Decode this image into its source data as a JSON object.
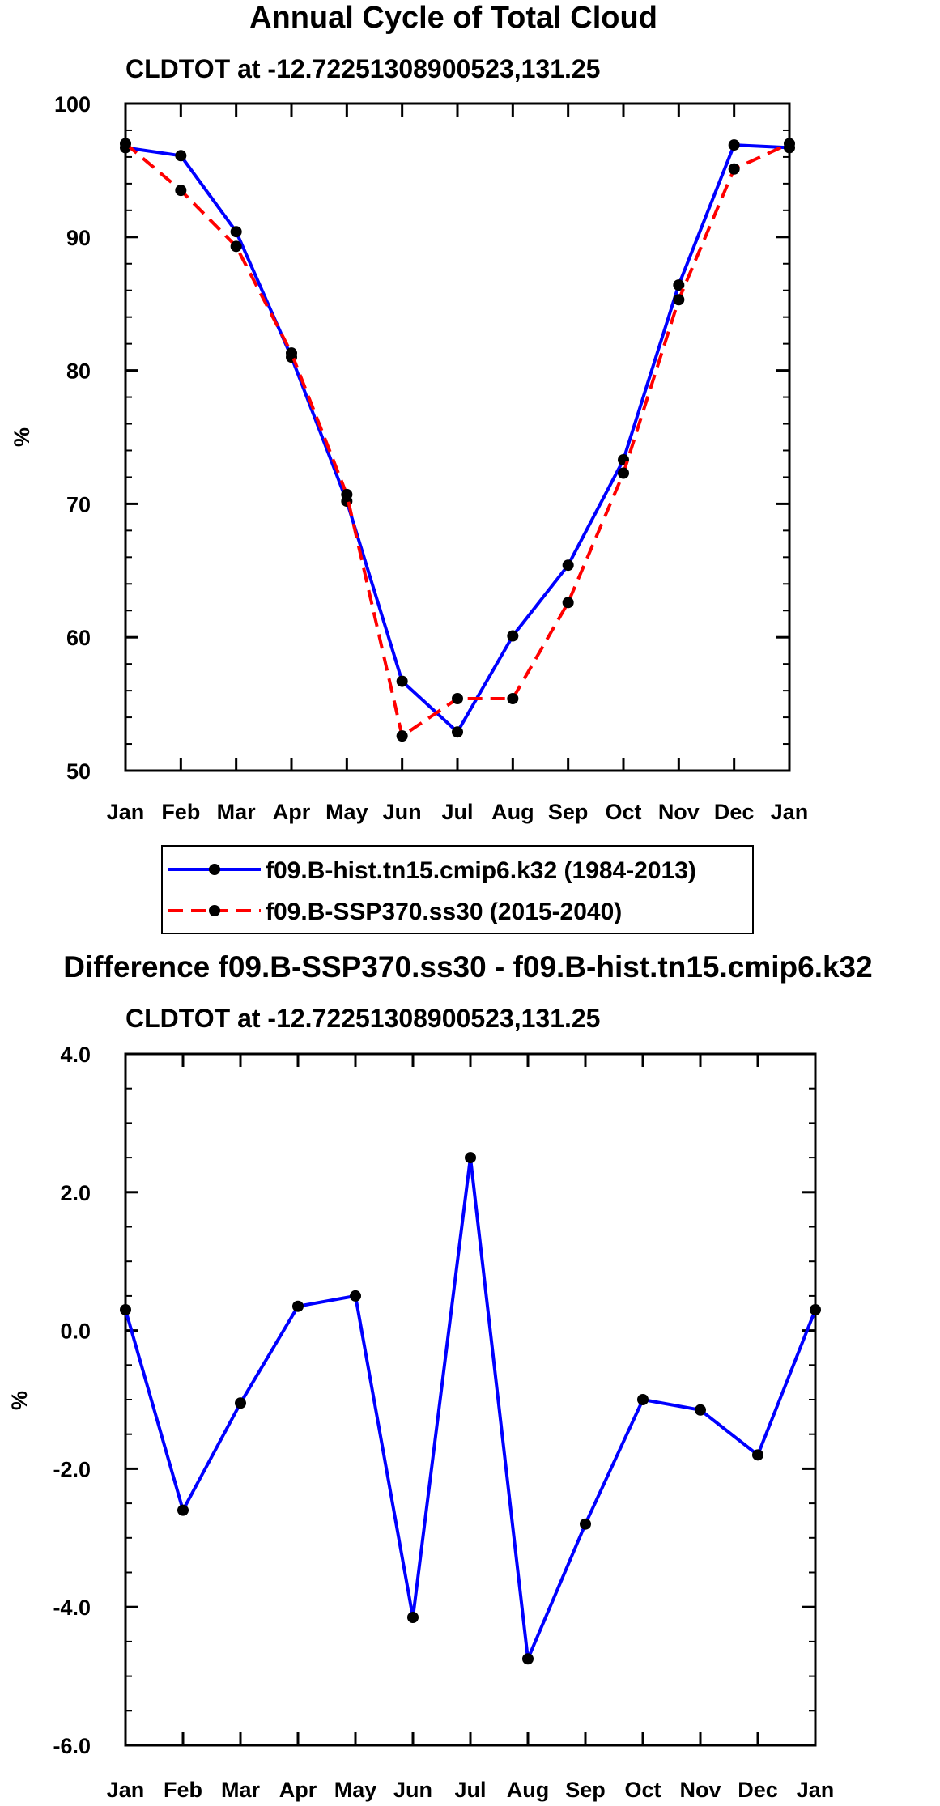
{
  "chart_data": [
    {
      "type": "line",
      "title": "Annual Cycle of Total Cloud",
      "subtitle": "CLDTOT at -12.72251308900523,131.25",
      "xlabel": "",
      "ylabel": "%",
      "categories": [
        "Jan",
        "Feb",
        "Mar",
        "Apr",
        "May",
        "Jun",
        "Jul",
        "Aug",
        "Sep",
        "Oct",
        "Nov",
        "Dec",
        "Jan"
      ],
      "ylim": [
        50,
        100
      ],
      "yticks": [
        "50",
        "60",
        "70",
        "80",
        "90",
        "100"
      ],
      "series": [
        {
          "name": "f09.B-hist.tn15.cmip6.k32 (1984-2013)",
          "color": "#0000ff",
          "dash": "solid",
          "values": [
            96.7,
            96.1,
            90.4,
            81.0,
            70.2,
            56.7,
            52.9,
            60.1,
            65.4,
            73.3,
            86.4,
            96.9,
            96.7
          ]
        },
        {
          "name": "f09.B-SSP370.ss30 (2015-2040)",
          "color": "#ff0000",
          "dash": "dashed",
          "values": [
            97.0,
            93.5,
            89.3,
            81.3,
            70.7,
            52.6,
            55.4,
            55.4,
            62.6,
            72.3,
            85.3,
            95.1,
            97.0
          ]
        }
      ],
      "legend": "below"
    },
    {
      "type": "line",
      "title": "Difference f09.B-SSP370.ss30 - f09.B-hist.tn15.cmip6.k32",
      "subtitle": "CLDTOT at -12.72251308900523,131.25",
      "xlabel": "",
      "ylabel": "%",
      "categories": [
        "Jan",
        "Feb",
        "Mar",
        "Apr",
        "May",
        "Jun",
        "Jul",
        "Aug",
        "Sep",
        "Oct",
        "Nov",
        "Dec",
        "Jan"
      ],
      "ylim": [
        -6.0,
        4.0
      ],
      "yticks": [
        "-6.0",
        "-4.0",
        "-2.0",
        "0.0",
        "2.0",
        "4.0"
      ],
      "series": [
        {
          "name": "Difference",
          "color": "#0000ff",
          "dash": "solid",
          "values": [
            0.3,
            -2.6,
            -1.05,
            0.35,
            0.5,
            -4.15,
            2.5,
            -4.75,
            -2.8,
            -1.0,
            -1.15,
            -1.8,
            0.3
          ]
        }
      ]
    }
  ]
}
